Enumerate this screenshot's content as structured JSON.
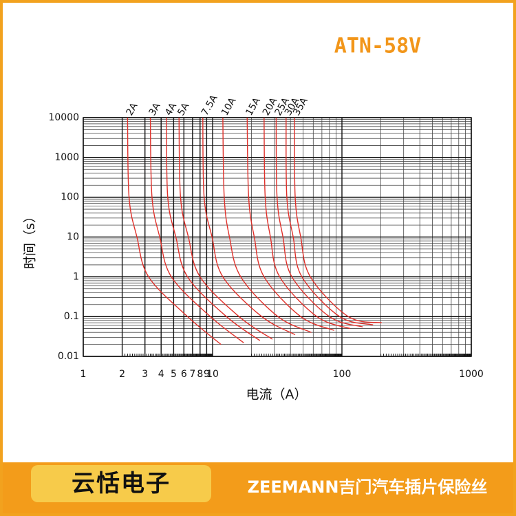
{
  "chart_data": {
    "type": "line",
    "title": "ATN-58V",
    "x_label": "电流（A）",
    "y_label": "时间（s）",
    "xscale": "log",
    "yscale": "log",
    "grid": true,
    "xlim": [
      1,
      1000
    ],
    "ylim": [
      0.01,
      10000
    ],
    "xticks": [
      1,
      2,
      3,
      4,
      5,
      6,
      7,
      8,
      9,
      10,
      100,
      1000
    ],
    "yticks": [
      0.01,
      0.1,
      1,
      10,
      100,
      1000,
      10000
    ],
    "series": [
      {
        "name": "2A",
        "color": "#e0302a",
        "x": [
          2.2,
          2.26,
          2.6,
          3.2,
          6.4,
          11.6
        ],
        "values": [
          10000,
          100,
          10,
          1,
          0.1,
          0.02
        ]
      },
      {
        "name": "3A",
        "color": "#e0302a",
        "x": [
          3.3,
          3.4,
          3.9,
          4.8,
          9.6,
          17.4
        ],
        "values": [
          10000,
          100,
          10,
          1,
          0.1,
          0.022
        ]
      },
      {
        "name": "4A",
        "color": "#e0302a",
        "x": [
          4.4,
          4.5,
          5.2,
          6.4,
          12.8,
          23.2
        ],
        "values": [
          10000,
          100,
          10,
          1,
          0.1,
          0.025
        ]
      },
      {
        "name": "5A",
        "color": "#e0302a",
        "x": [
          5.5,
          5.65,
          6.5,
          8,
          16,
          29
        ],
        "values": [
          10000,
          100,
          10,
          1,
          0.1,
          0.027
        ]
      },
      {
        "name": "7.5A",
        "color": "#e0302a",
        "x": [
          8.4,
          8.6,
          9.9,
          12,
          24,
          43.5
        ],
        "values": [
          10000,
          100,
          10,
          1,
          0.1,
          0.035
        ]
      },
      {
        "name": "10A",
        "color": "#e0302a",
        "x": [
          12,
          12.3,
          13.5,
          16.5,
          32,
          58
        ],
        "values": [
          10000,
          100,
          10,
          1,
          0.1,
          0.04
        ]
      },
      {
        "name": "15A",
        "color": "#e0302a",
        "x": [
          18.5,
          19,
          21,
          25,
          48,
          87
        ],
        "values": [
          10000,
          100,
          10,
          1,
          0.1,
          0.045
        ]
      },
      {
        "name": "20A",
        "color": "#e0302a",
        "x": [
          25,
          25.5,
          28,
          33,
          64,
          116
        ],
        "values": [
          10000,
          100,
          10,
          1,
          0.1,
          0.05
        ]
      },
      {
        "name": "25A",
        "color": "#e0302a",
        "x": [
          31,
          31.5,
          35,
          41,
          80,
          145
        ],
        "values": [
          10000,
          100,
          10,
          1,
          0.1,
          0.055
        ]
      },
      {
        "name": "30A",
        "color": "#e0302a",
        "x": [
          37,
          37.5,
          42,
          49,
          96,
          174
        ],
        "values": [
          10000,
          100,
          10,
          1,
          0.1,
          0.062
        ]
      },
      {
        "name": "35A",
        "color": "#e0302a",
        "x": [
          43,
          43.5,
          48,
          57,
          112,
          203
        ],
        "values": [
          10000,
          100,
          10,
          1,
          0.1,
          0.07
        ]
      }
    ]
  },
  "banner": {
    "brand": "云恬电子",
    "product": "ZEEMANN吉门汽车插片保险丝"
  }
}
